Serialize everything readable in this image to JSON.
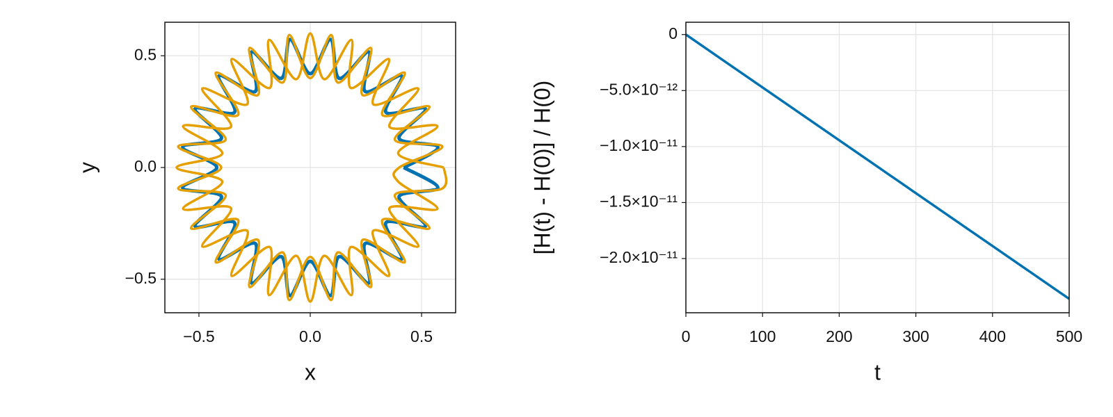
{
  "chart_data": [
    {
      "type": "line",
      "xlabel": "x",
      "ylabel": "y",
      "xlim": [
        -0.653,
        0.653
      ],
      "ylim": [
        -0.65,
        0.65
      ],
      "xticks": [
        {
          "value": -0.5,
          "label": "−0.5"
        },
        {
          "value": 0,
          "label": "0.0"
        },
        0.5
      ],
      "yticks": [
        {
          "value": -0.5,
          "label": "−0.5"
        },
        {
          "value": 0,
          "label": "0.0"
        },
        0.5
      ],
      "grid": true,
      "series": [
        {
          "color": "#0072b2",
          "x": [
            0.42,
            0.573,
            0.399,
            0.517,
            0.34,
            0.41,
            0.247,
            0.263,
            0.13,
            0.091,
            0,
            -0.091,
            -0.13,
            -0.263,
            -0.247,
            -0.41,
            -0.34,
            -0.517,
            -0.399,
            -0.573,
            -0.42,
            -0.573,
            -0.399,
            -0.517,
            -0.34,
            -0.41,
            -0.247,
            -0.263,
            -0.13,
            -0.091,
            0,
            0.091,
            0.13,
            0.263,
            0.247,
            0.41,
            0.34,
            0.517,
            0.399,
            0.573,
            0.42
          ],
          "values": [
            0,
            0.091,
            0.13,
            0.263,
            0.247,
            0.41,
            0.34,
            0.517,
            0.399,
            0.573,
            0.42,
            0.573,
            0.399,
            0.517,
            0.34,
            0.41,
            0.247,
            0.263,
            0.13,
            0.091,
            0,
            -0.091,
            -0.13,
            -0.263,
            -0.247,
            -0.41,
            -0.34,
            -0.517,
            -0.399,
            -0.573,
            -0.42,
            -0.573,
            -0.399,
            -0.517,
            -0.34,
            -0.41,
            -0.247,
            -0.263,
            -0.13,
            -0.091,
            0
          ]
        },
        {
          "color": "#e69f00",
          "x": [
            0.6,
            0.395,
            0.571,
            0.356,
            0.485,
            0.283,
            0.353,
            0.182,
            0.185,
            0.063,
            0,
            -0.063,
            -0.185,
            -0.182,
            -0.353,
            -0.283,
            -0.485,
            -0.356,
            -0.571,
            -0.395,
            -0.6,
            -0.395,
            -0.571,
            -0.356,
            -0.485,
            -0.283,
            -0.353,
            -0.182,
            -0.185,
            -0.063,
            0,
            0.063,
            0.185,
            0.182,
            0.353,
            0.283,
            0.485,
            0.356,
            0.571,
            0.395,
            0.4,
            0.593,
            0.38,
            0.535,
            0.324,
            0.424,
            0.235,
            0.272,
            0.124,
            0.094,
            0,
            -0.094,
            -0.124,
            -0.272,
            -0.235,
            -0.424,
            -0.324,
            -0.535,
            -0.38,
            -0.593,
            -0.4,
            -0.593,
            -0.38,
            -0.535,
            -0.324,
            -0.424,
            -0.235,
            -0.272,
            -0.124,
            -0.094,
            0,
            0.094,
            0.124,
            0.272,
            0.235,
            0.424,
            0.324,
            0.535,
            0.38,
            0.593,
            0.6
          ],
          "values": [
            0,
            0.063,
            0.185,
            0.182,
            0.353,
            0.283,
            0.485,
            0.356,
            0.571,
            0.395,
            0.6,
            0.395,
            0.571,
            0.356,
            0.485,
            0.283,
            0.353,
            0.182,
            0.185,
            0.063,
            0,
            -0.063,
            -0.185,
            -0.182,
            -0.353,
            -0.283,
            -0.485,
            -0.356,
            -0.571,
            -0.395,
            -0.6,
            -0.395,
            -0.571,
            -0.356,
            -0.485,
            -0.283,
            -0.353,
            -0.182,
            -0.185,
            -0.063,
            0,
            0.094,
            0.124,
            0.272,
            0.235,
            0.424,
            0.324,
            0.535,
            0.38,
            0.593,
            0.4,
            0.593,
            0.38,
            0.535,
            0.324,
            0.424,
            0.235,
            0.272,
            0.124,
            0.094,
            0,
            -0.094,
            -0.124,
            -0.272,
            -0.235,
            -0.424,
            -0.324,
            -0.535,
            -0.38,
            -0.593,
            -0.4,
            -0.593,
            -0.38,
            -0.535,
            -0.324,
            -0.424,
            -0.235,
            -0.272,
            -0.124,
            -0.094,
            0
          ]
        }
      ]
    },
    {
      "type": "line",
      "xlabel": "t",
      "ylabel": "[H(t) - H(0)] / H(0)",
      "xlim": [
        0,
        500
      ],
      "ylim": [
        -2.484e-11,
        1.1e-12
      ],
      "xticks": [
        0,
        100,
        200,
        300,
        400,
        500
      ],
      "yticks": [
        0,
        {
          "value": -5e-12,
          "label": "−5.0×10⁻¹²"
        },
        {
          "value": -1e-11,
          "label": "−1.0×10⁻¹¹"
        },
        {
          "value": -1.5e-11,
          "label": "−1.5×10⁻¹¹"
        },
        {
          "value": -2e-11,
          "label": "−2.0×10⁻¹¹"
        }
      ],
      "grid": true,
      "series": [
        {
          "color": "#0072b2",
          "x": [
            0,
            50,
            100,
            150,
            200,
            250,
            300,
            350,
            400,
            450,
            500
          ],
          "values": [
            0,
            -2.36e-12,
            -4.72e-12,
            -7.08e-12,
            -9.44e-12,
            -1.18e-11,
            -1.416e-11,
            -1.652e-11,
            -1.888e-11,
            -2.124e-11,
            -2.36e-11
          ]
        }
      ]
    }
  ]
}
